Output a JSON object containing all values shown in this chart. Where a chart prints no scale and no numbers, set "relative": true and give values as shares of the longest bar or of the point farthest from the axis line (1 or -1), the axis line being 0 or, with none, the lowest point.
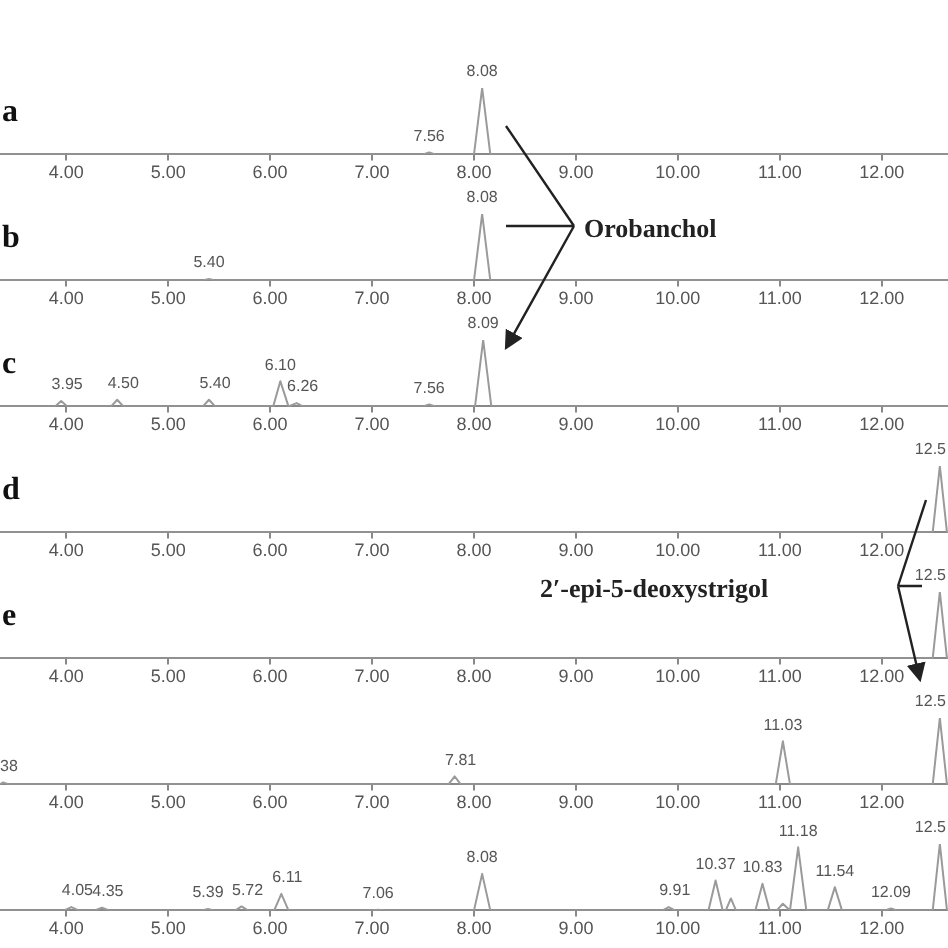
{
  "chart_data": [
    {
      "type": "line",
      "title": "a",
      "relative": true,
      "xlim": [
        3.35,
        12.65
      ],
      "xticks": [
        {
          "value": 4,
          "label": "4.00"
        },
        {
          "value": 5,
          "label": "5.00"
        },
        {
          "value": 6,
          "label": "6.00"
        },
        {
          "value": 7,
          "label": "7.00"
        },
        {
          "value": 8,
          "label": "8.00"
        },
        {
          "value": 9,
          "label": "9.00"
        },
        {
          "value": 10,
          "label": "10.00"
        },
        {
          "value": 11,
          "label": "11.00"
        },
        {
          "value": 12,
          "label": "12.00"
        }
      ],
      "grid": false,
      "legend": false,
      "marker": "none",
      "series": [
        {
          "color": "#9a9a9a",
          "x": [
            3.35,
            7.5,
            7.56,
            7.62,
            8.0,
            8.08,
            8.16,
            12.65
          ],
          "values": [
            0,
            0,
            0.03,
            0,
            0,
            1,
            0,
            0
          ]
        }
      ],
      "annotations": [
        {
          "text": "7.56",
          "x": 7.56,
          "y": 0.03
        },
        {
          "text": "8.08",
          "x": 8.08,
          "y": 1
        }
      ]
    },
    {
      "type": "line",
      "title": "b",
      "relative": true,
      "xlim": [
        3.35,
        12.65
      ],
      "xticks": [
        {
          "value": 4,
          "label": "4.00"
        },
        {
          "value": 5,
          "label": "5.00"
        },
        {
          "value": 6,
          "label": "6.00"
        },
        {
          "value": 7,
          "label": "7.00"
        },
        {
          "value": 8,
          "label": "8.00"
        },
        {
          "value": 9,
          "label": "9.00"
        },
        {
          "value": 10,
          "label": "10.00"
        },
        {
          "value": 11,
          "label": "11.00"
        },
        {
          "value": 12,
          "label": "12.00"
        }
      ],
      "grid": false,
      "legend": false,
      "marker": "none",
      "series": [
        {
          "color": "#9a9a9a",
          "x": [
            3.35,
            5.34,
            5.4,
            5.46,
            8.0,
            8.08,
            8.16,
            12.65
          ],
          "values": [
            0,
            0,
            0.02,
            0,
            0,
            1,
            0,
            0
          ]
        }
      ],
      "annotations": [
        {
          "text": "5.40",
          "x": 5.4,
          "y": 0.02
        },
        {
          "text": "8.08",
          "x": 8.08,
          "y": 1
        },
        "Orobanchol"
      ]
    },
    {
      "type": "line",
      "title": "c",
      "relative": true,
      "xlim": [
        3.35,
        12.65
      ],
      "xticks": [
        {
          "value": 4,
          "label": "4.00"
        },
        {
          "value": 5,
          "label": "5.00"
        },
        {
          "value": 6,
          "label": "6.00"
        },
        {
          "value": 7,
          "label": "7.00"
        },
        {
          "value": 8,
          "label": "8.00"
        },
        {
          "value": 9,
          "label": "9.00"
        },
        {
          "value": 10,
          "label": "10.00"
        },
        {
          "value": 11,
          "label": "11.00"
        },
        {
          "value": 12,
          "label": "12.00"
        }
      ],
      "grid": false,
      "legend": false,
      "marker": "none",
      "series": [
        {
          "color": "#9a9a9a",
          "x": [
            3.35,
            3.89,
            3.95,
            4.01,
            4.44,
            4.5,
            4.56,
            5.34,
            5.4,
            5.46,
            6.03,
            6.1,
            6.18,
            6.26,
            6.32,
            7.5,
            7.56,
            7.62,
            8.01,
            8.09,
            8.17,
            12.65
          ],
          "values": [
            0,
            0,
            0.08,
            0,
            0,
            0.1,
            0,
            0,
            0.1,
            0,
            0,
            0.38,
            0,
            0.05,
            0,
            0,
            0.03,
            0,
            0,
            1,
            0,
            0
          ]
        }
      ],
      "annotations": [
        {
          "text": "3.95",
          "x": 3.95,
          "y": 0.08
        },
        {
          "text": "4.50",
          "x": 4.5,
          "y": 0.1
        },
        {
          "text": "5.40",
          "x": 5.4,
          "y": 0.1
        },
        {
          "text": "6.10",
          "x": 6.1,
          "y": 0.38
        },
        {
          "text": "6.26",
          "x": 6.26,
          "y": 0.05
        },
        {
          "text": "7.56",
          "x": 7.56,
          "y": 0.03
        },
        {
          "text": "8.09",
          "x": 8.09,
          "y": 1
        }
      ]
    },
    {
      "type": "line",
      "title": "d",
      "relative": true,
      "xlim": [
        3.35,
        12.65
      ],
      "xticks": [
        {
          "value": 4,
          "label": "4.00"
        },
        {
          "value": 5,
          "label": "5.00"
        },
        {
          "value": 6,
          "label": "6.00"
        },
        {
          "value": 7,
          "label": "7.00"
        },
        {
          "value": 8,
          "label": "8.00"
        },
        {
          "value": 9,
          "label": "9.00"
        },
        {
          "value": 10,
          "label": "10.00"
        },
        {
          "value": 11,
          "label": "11.00"
        },
        {
          "value": 12,
          "label": "12.00"
        }
      ],
      "grid": false,
      "legend": false,
      "marker": "none",
      "series": [
        {
          "color": "#9a9a9a",
          "x": [
            3.35,
            12.5,
            12.57,
            12.64,
            12.65
          ],
          "values": [
            0,
            0,
            1,
            0,
            0
          ]
        }
      ],
      "annotations": [
        {
          "text": "12.5",
          "x": 12.57,
          "y": 1
        }
      ]
    },
    {
      "type": "line",
      "title": "e",
      "relative": true,
      "xlim": [
        3.35,
        12.65
      ],
      "xticks": [
        {
          "value": 4,
          "label": "4.00"
        },
        {
          "value": 5,
          "label": "5.00"
        },
        {
          "value": 6,
          "label": "6.00"
        },
        {
          "value": 7,
          "label": "7.00"
        },
        {
          "value": 8,
          "label": "8.00"
        },
        {
          "value": 9,
          "label": "9.00"
        },
        {
          "value": 10,
          "label": "10.00"
        },
        {
          "value": 11,
          "label": "11.00"
        },
        {
          "value": 12,
          "label": "12.00"
        }
      ],
      "grid": false,
      "legend": false,
      "marker": "none",
      "series": [
        {
          "color": "#9a9a9a",
          "x": [
            3.35,
            12.5,
            12.57,
            12.64,
            12.65
          ],
          "values": [
            0,
            0,
            1,
            0,
            0
          ]
        }
      ],
      "annotations": [
        {
          "text": "12.5",
          "x": 12.57,
          "y": 1
        },
        "2′-epi-5-deoxystrigol"
      ]
    },
    {
      "type": "line",
      "relative": true,
      "xlim": [
        3.35,
        12.65
      ],
      "xticks": [
        {
          "value": 4,
          "label": "4.00"
        },
        {
          "value": 5,
          "label": "5.00"
        },
        {
          "value": 6,
          "label": "6.00"
        },
        {
          "value": 7,
          "label": "7.00"
        },
        {
          "value": 8,
          "label": "8.00"
        },
        {
          "value": 9,
          "label": "9.00"
        },
        {
          "value": 10,
          "label": "10.00"
        },
        {
          "value": 11,
          "label": "11.00"
        },
        {
          "value": 12,
          "label": "12.00"
        }
      ],
      "grid": false,
      "legend": false,
      "marker": "none",
      "series": [
        {
          "color": "#9a9a9a",
          "x": [
            3.35,
            3.38,
            3.44,
            7.75,
            7.81,
            7.87,
            10.96,
            11.03,
            11.1,
            12.5,
            12.57,
            12.64,
            12.65
          ],
          "values": [
            0,
            0.03,
            0,
            0,
            0.12,
            0,
            0,
            0.65,
            0,
            0,
            1,
            0,
            0
          ]
        }
      ],
      "annotations": [
        {
          "text": "38",
          "x": 3.38,
          "y": 0.03
        },
        {
          "text": "7.81",
          "x": 7.81,
          "y": 0.12
        },
        {
          "text": "11.03",
          "x": 11.03,
          "y": 0.65
        },
        {
          "text": "12.5",
          "x": 12.57,
          "y": 1
        }
      ]
    },
    {
      "type": "line",
      "relative": true,
      "xlim": [
        3.35,
        12.65
      ],
      "xticks": [
        {
          "value": 4,
          "label": "4.00"
        },
        {
          "value": 5,
          "label": "5.00"
        },
        {
          "value": 6,
          "label": "6.00"
        },
        {
          "value": 7,
          "label": "7.00"
        },
        {
          "value": 8,
          "label": "8.00"
        },
        {
          "value": 9,
          "label": "9.00"
        },
        {
          "value": 10,
          "label": "10.00"
        },
        {
          "value": 11,
          "label": "11.00"
        },
        {
          "value": 12,
          "label": "12.00"
        }
      ],
      "grid": false,
      "legend": false,
      "marker": "none",
      "series": [
        {
          "color": "#9a9a9a",
          "x": [
            3.35,
            3.98,
            4.05,
            4.12,
            4.28,
            4.35,
            4.42,
            5.33,
            5.39,
            5.45,
            5.66,
            5.72,
            5.78,
            6.04,
            6.11,
            6.18,
            7.0,
            7.06,
            7.12,
            8.0,
            8.08,
            8.16,
            9.85,
            9.91,
            9.97,
            10.3,
            10.37,
            10.44,
            10.47,
            10.52,
            10.57,
            10.76,
            10.83,
            10.9,
            10.97,
            11.03,
            11.1,
            11.18,
            11.26,
            11.47,
            11.54,
            11.61,
            12.03,
            12.09,
            12.15,
            12.5,
            12.57,
            12.64,
            12.65
          ],
          "values": [
            0,
            0,
            0.05,
            0,
            0,
            0.04,
            0,
            0,
            0.02,
            0,
            0,
            0.06,
            0,
            0,
            0.25,
            0,
            0,
            0.01,
            0,
            0,
            0.55,
            0,
            0,
            0.05,
            0,
            0,
            0.45,
            0,
            0,
            0.18,
            0,
            0,
            0.4,
            0,
            0,
            0.1,
            0,
            0.95,
            0,
            0,
            0.35,
            0,
            0,
            0.03,
            0,
            0,
            1,
            0,
            0
          ]
        }
      ],
      "annotations": [
        {
          "text": "4.05",
          "x": 4.05,
          "y": 0.05
        },
        {
          "text": "4.35",
          "x": 4.35,
          "y": 0.04
        },
        {
          "text": "5.39",
          "x": 5.39,
          "y": 0.02
        },
        {
          "text": "5.72",
          "x": 5.72,
          "y": 0.06
        },
        {
          "text": "6.11",
          "x": 6.11,
          "y": 0.25
        },
        {
          "text": "7.06",
          "x": 7.06,
          "y": 0.01
        },
        {
          "text": "8.08",
          "x": 8.08,
          "y": 0.55
        },
        {
          "text": "9.91",
          "x": 9.91,
          "y": 0.05
        },
        {
          "text": "10.37",
          "x": 10.37,
          "y": 0.45
        },
        {
          "text": "10.83",
          "x": 10.83,
          "y": 0.4
        },
        {
          "text": "11.18",
          "x": 11.18,
          "y": 0.95
        },
        {
          "text": "11.54",
          "x": 11.54,
          "y": 0.35
        },
        {
          "text": "12.09",
          "x": 12.09,
          "y": 0.03
        },
        {
          "text": "12.5",
          "x": 12.57,
          "y": 1
        }
      ]
    }
  ]
}
